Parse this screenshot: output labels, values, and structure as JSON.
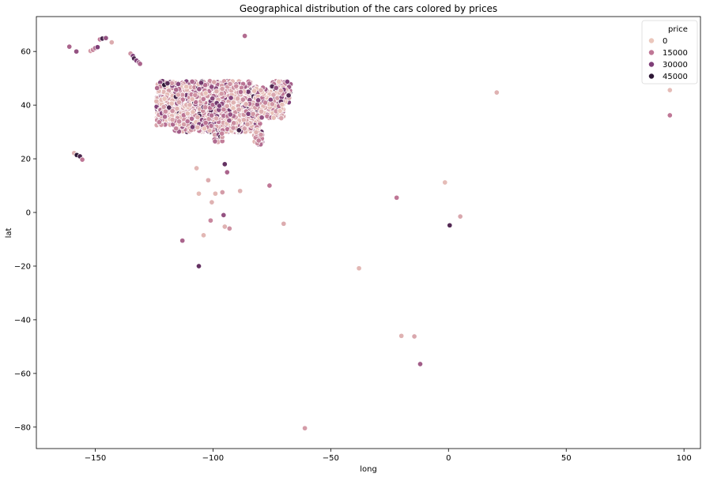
{
  "chart_data": {
    "type": "scatter",
    "title": "Geographical distribution of the cars colored by prices",
    "xlabel": "long",
    "ylabel": "lat",
    "xlim": [
      -175,
      107
    ],
    "ylim": [
      -88,
      73
    ],
    "xticks": [
      -150,
      -100,
      -50,
      0,
      50,
      100
    ],
    "yticks": [
      -80,
      -60,
      -40,
      -20,
      0,
      20,
      40,
      60
    ],
    "grid": false,
    "legend": {
      "title": "price",
      "placement": "top-right",
      "entries": [
        {
          "label": "0",
          "color": "#ebc7bc"
        },
        {
          "label": "15000",
          "color": "#bf7796"
        },
        {
          "label": "30000",
          "color": "#7f3f78"
        },
        {
          "label": "45000",
          "color": "#2d1735"
        }
      ]
    },
    "color_scale": {
      "price_stops": [
        0,
        15000,
        30000,
        45000
      ],
      "colors": [
        "#ebc7bc",
        "#bf7796",
        "#7f3f78",
        "#2d1735"
      ]
    },
    "point_style": {
      "edge_color": "#ffffff"
    },
    "outlier_points": [
      {
        "long": -161,
        "lat": 61.8,
        "price": 20000
      },
      {
        "long": -158,
        "lat": 60.0,
        "price": 25000
      },
      {
        "long": -152,
        "lat": 60.2,
        "price": 8000
      },
      {
        "long": -151,
        "lat": 60.6,
        "price": 12000
      },
      {
        "long": -150,
        "lat": 61.3,
        "price": 18000
      },
      {
        "long": -149,
        "lat": 61.6,
        "price": 30000
      },
      {
        "long": -148,
        "lat": 64.5,
        "price": 15000
      },
      {
        "long": -147,
        "lat": 64.8,
        "price": 40000
      },
      {
        "long": -145.5,
        "lat": 65.0,
        "price": 25000
      },
      {
        "long": -143,
        "lat": 63.4,
        "price": 5000
      },
      {
        "long": -135,
        "lat": 59.2,
        "price": 10000
      },
      {
        "long": -134,
        "lat": 58.3,
        "price": 30000
      },
      {
        "long": -133.5,
        "lat": 57.4,
        "price": 40000
      },
      {
        "long": -132.5,
        "lat": 56.6,
        "price": 30000
      },
      {
        "long": -131.5,
        "lat": 55.9,
        "price": 25000
      },
      {
        "long": -131,
        "lat": 55.4,
        "price": 20000
      },
      {
        "long": -159,
        "lat": 22.1,
        "price": 4000
      },
      {
        "long": -157.8,
        "lat": 21.4,
        "price": 45000
      },
      {
        "long": -156.5,
        "lat": 20.9,
        "price": 40000
      },
      {
        "long": -155.5,
        "lat": 19.7,
        "price": 15000
      },
      {
        "long": -86.5,
        "lat": 65.8,
        "price": 18000
      },
      {
        "long": -107,
        "lat": 16.5,
        "price": 3000
      },
      {
        "long": -106,
        "lat": 7.0,
        "price": 2000
      },
      {
        "long": -102,
        "lat": 12.0,
        "price": 5000
      },
      {
        "long": -100.5,
        "lat": 3.8,
        "price": 4000
      },
      {
        "long": -99,
        "lat": 7.0,
        "price": 3000
      },
      {
        "long": -101,
        "lat": -3.0,
        "price": 12000
      },
      {
        "long": -96,
        "lat": 7.5,
        "price": 8000
      },
      {
        "long": -95.5,
        "lat": -1.0,
        "price": 25000
      },
      {
        "long": -94,
        "lat": 15.0,
        "price": 20000
      },
      {
        "long": -95,
        "lat": 18.0,
        "price": 35000
      },
      {
        "long": -95,
        "lat": -5.3,
        "price": 4000
      },
      {
        "long": -93,
        "lat": -6.0,
        "price": 10000
      },
      {
        "long": -104,
        "lat": -8.5,
        "price": 3000
      },
      {
        "long": -113,
        "lat": -10.5,
        "price": 20000
      },
      {
        "long": -106,
        "lat": -20.0,
        "price": 35000
      },
      {
        "long": -88.5,
        "lat": 8.0,
        "price": 4000
      },
      {
        "long": -76,
        "lat": 10.0,
        "price": 15000
      },
      {
        "long": -70,
        "lat": -4.2,
        "price": 5000
      },
      {
        "long": -38,
        "lat": -20.8,
        "price": 3000
      },
      {
        "long": -22,
        "lat": 5.5,
        "price": 15000
      },
      {
        "long": -20,
        "lat": -46.0,
        "price": 4000
      },
      {
        "long": -14.5,
        "lat": -46.2,
        "price": 6000
      },
      {
        "long": -12,
        "lat": -56.5,
        "price": 22000
      },
      {
        "long": -61,
        "lat": -80.4,
        "price": 8000
      },
      {
        "long": -1.5,
        "lat": 11.2,
        "price": 2000
      },
      {
        "long": 0.5,
        "lat": -4.8,
        "price": 38000
      },
      {
        "long": 5,
        "lat": -1.5,
        "price": 6000
      },
      {
        "long": 20.5,
        "lat": 44.7,
        "price": 4000
      },
      {
        "long": 94,
        "lat": 45.6,
        "price": 2000
      },
      {
        "long": 94,
        "lat": 36.2,
        "price": 15000
      }
    ]
  }
}
